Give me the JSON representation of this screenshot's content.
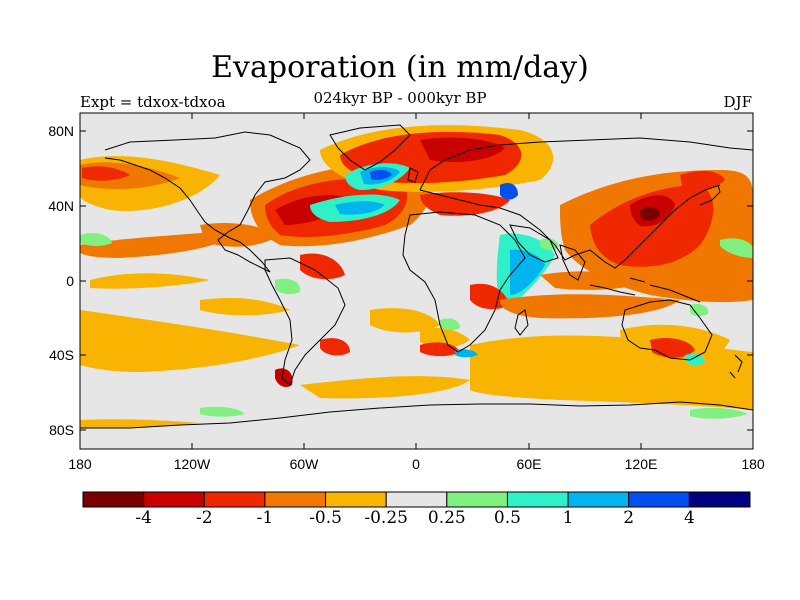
{
  "title": "Evaporation (in mm/day)",
  "subtitle": "024kyr BP - 000kyr BP",
  "left_label": "Expt = tdxox-tdxoa",
  "right_label": "DJF",
  "lat_labels": [
    "80N",
    "40N",
    "0",
    "40S",
    "80S"
  ],
  "lon_labels": [
    "180",
    "120W",
    "60W",
    "0",
    "60E",
    "120E",
    "180"
  ],
  "colorbar": {
    "colors": [
      "#7a0000",
      "#c80000",
      "#f02800",
      "#f07800",
      "#f8b400",
      "#e6e6e6",
      "#80f080",
      "#30f0c8",
      "#00b4f0",
      "#0050f0",
      "#000080"
    ],
    "labels": [
      "-4",
      "-2",
      "-1",
      "-0.5",
      "-0.25",
      "0.25",
      "0.5",
      "1",
      "2",
      "4"
    ]
  }
}
